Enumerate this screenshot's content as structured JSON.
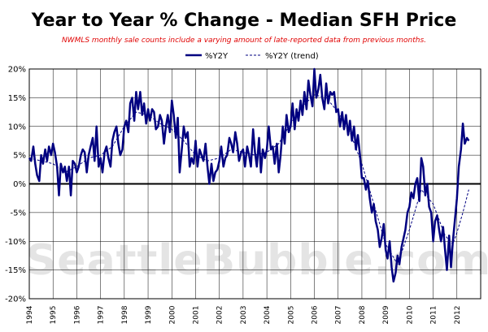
{
  "chart_data": {
    "type": "line",
    "title": "Year to Year % Change - Median SFH Price",
    "subtitle": "NWMLS monthly sale counts include a varying amount of late-reported  data from previous months.",
    "watermark": "SeattleBubble.com",
    "xlabel": "",
    "ylabel": "",
    "xlim": [
      1994,
      2013
    ],
    "ylim": [
      -20,
      20
    ],
    "y_ticks": [
      "20%",
      "15%",
      "10%",
      "5%",
      "0%",
      "-5%",
      "-10%",
      "-15%",
      "-20%"
    ],
    "y_tick_values": [
      20,
      15,
      10,
      5,
      0,
      -5,
      -10,
      -15,
      -20
    ],
    "x_ticks": [
      "1994",
      "1995",
      "1996",
      "1997",
      "1998",
      "1999",
      "2000",
      "2001",
      "2002",
      "2003",
      "2004",
      "2005",
      "2006",
      "2007",
      "2008",
      "2009",
      "2010",
      "2011",
      "2012"
    ],
    "grid": true,
    "legend_position": "top-center",
    "colors": {
      "series": "#000080",
      "trend": "#000080",
      "subtitle": "#e00000",
      "zero_line": "#000000",
      "grid": "#000000"
    },
    "series": [
      {
        "name": "%Y2Y",
        "style": "solid",
        "points": [
          [
            1994.0,
            4.5
          ],
          [
            1994.08,
            4.0
          ],
          [
            1994.17,
            6.5
          ],
          [
            1994.25,
            3.5
          ],
          [
            1994.33,
            1.5
          ],
          [
            1994.42,
            0.5
          ],
          [
            1994.5,
            5.0
          ],
          [
            1994.58,
            3.5
          ],
          [
            1994.67,
            6.0
          ],
          [
            1994.75,
            4.0
          ],
          [
            1994.83,
            6.5
          ],
          [
            1994.92,
            5.0
          ],
          [
            1995.0,
            7.0
          ],
          [
            1995.08,
            5.5
          ],
          [
            1995.17,
            3.0
          ],
          [
            1995.25,
            -2.0
          ],
          [
            1995.33,
            3.5
          ],
          [
            1995.42,
            2.0
          ],
          [
            1995.5,
            3.0
          ],
          [
            1995.58,
            0.5
          ],
          [
            1995.67,
            3.0
          ],
          [
            1995.75,
            -2.0
          ],
          [
            1995.83,
            4.0
          ],
          [
            1995.92,
            3.5
          ],
          [
            1996.0,
            2.0
          ],
          [
            1996.08,
            3.0
          ],
          [
            1996.17,
            5.0
          ],
          [
            1996.25,
            6.0
          ],
          [
            1996.33,
            5.5
          ],
          [
            1996.42,
            2.0
          ],
          [
            1996.5,
            5.0
          ],
          [
            1996.58,
            6.5
          ],
          [
            1996.67,
            8.0
          ],
          [
            1996.75,
            4.0
          ],
          [
            1996.83,
            10.0
          ],
          [
            1996.92,
            3.0
          ],
          [
            1997.0,
            4.5
          ],
          [
            1997.08,
            2.0
          ],
          [
            1997.17,
            5.5
          ],
          [
            1997.25,
            6.5
          ],
          [
            1997.33,
            4.5
          ],
          [
            1997.42,
            3.0
          ],
          [
            1997.5,
            7.5
          ],
          [
            1997.58,
            9.0
          ],
          [
            1997.67,
            10.0
          ],
          [
            1997.75,
            7.0
          ],
          [
            1997.83,
            5.0
          ],
          [
            1997.92,
            6.0
          ],
          [
            1998.0,
            10.0
          ],
          [
            1998.08,
            11.0
          ],
          [
            1998.17,
            9.0
          ],
          [
            1998.25,
            14.0
          ],
          [
            1998.33,
            15.0
          ],
          [
            1998.42,
            11.0
          ],
          [
            1998.5,
            16.0
          ],
          [
            1998.58,
            13.0
          ],
          [
            1998.67,
            16.0
          ],
          [
            1998.75,
            12.0
          ],
          [
            1998.83,
            14.0
          ],
          [
            1998.92,
            10.5
          ],
          [
            1999.0,
            13.0
          ],
          [
            1999.08,
            11.0
          ],
          [
            1999.17,
            13.0
          ],
          [
            1999.25,
            12.5
          ],
          [
            1999.33,
            9.5
          ],
          [
            1999.42,
            10.0
          ],
          [
            1999.5,
            12.0
          ],
          [
            1999.58,
            11.0
          ],
          [
            1999.67,
            7.0
          ],
          [
            1999.75,
            10.0
          ],
          [
            1999.83,
            12.0
          ],
          [
            1999.92,
            9.0
          ],
          [
            2000.0,
            14.5
          ],
          [
            2000.08,
            12.0
          ],
          [
            2000.17,
            8.0
          ],
          [
            2000.25,
            11.5
          ],
          [
            2000.33,
            2.0
          ],
          [
            2000.42,
            6.0
          ],
          [
            2000.5,
            10.0
          ],
          [
            2000.58,
            8.0
          ],
          [
            2000.67,
            9.0
          ],
          [
            2000.75,
            3.0
          ],
          [
            2000.83,
            4.5
          ],
          [
            2000.92,
            3.5
          ],
          [
            2001.0,
            7.5
          ],
          [
            2001.08,
            3.0
          ],
          [
            2001.17,
            6.0
          ],
          [
            2001.25,
            5.0
          ],
          [
            2001.33,
            4.0
          ],
          [
            2001.42,
            7.0
          ],
          [
            2001.5,
            3.0
          ],
          [
            2001.58,
            0.0
          ],
          [
            2001.67,
            3.5
          ],
          [
            2001.75,
            0.5
          ],
          [
            2001.83,
            2.0
          ],
          [
            2001.92,
            2.5
          ],
          [
            2002.0,
            4.0
          ],
          [
            2002.08,
            6.5
          ],
          [
            2002.17,
            3.0
          ],
          [
            2002.25,
            4.5
          ],
          [
            2002.33,
            5.0
          ],
          [
            2002.42,
            8.0
          ],
          [
            2002.5,
            7.0
          ],
          [
            2002.58,
            5.5
          ],
          [
            2002.67,
            9.0
          ],
          [
            2002.75,
            7.0
          ],
          [
            2002.83,
            4.0
          ],
          [
            2002.92,
            5.5
          ],
          [
            2003.0,
            6.0
          ],
          [
            2003.08,
            3.0
          ],
          [
            2003.17,
            6.5
          ],
          [
            2003.25,
            5.0
          ],
          [
            2003.33,
            3.0
          ],
          [
            2003.42,
            9.5
          ],
          [
            2003.5,
            5.5
          ],
          [
            2003.58,
            3.0
          ],
          [
            2003.67,
            8.0
          ],
          [
            2003.75,
            2.0
          ],
          [
            2003.83,
            6.0
          ],
          [
            2003.92,
            4.5
          ],
          [
            2004.0,
            6.0
          ],
          [
            2004.08,
            10.0
          ],
          [
            2004.17,
            6.0
          ],
          [
            2004.25,
            6.5
          ],
          [
            2004.33,
            3.5
          ],
          [
            2004.42,
            7.0
          ],
          [
            2004.5,
            2.0
          ],
          [
            2004.58,
            5.0
          ],
          [
            2004.67,
            10.0
          ],
          [
            2004.75,
            7.0
          ],
          [
            2004.83,
            12.0
          ],
          [
            2004.92,
            9.0
          ],
          [
            2005.0,
            10.0
          ],
          [
            2005.08,
            14.0
          ],
          [
            2005.17,
            9.5
          ],
          [
            2005.25,
            13.0
          ],
          [
            2005.33,
            11.0
          ],
          [
            2005.42,
            14.5
          ],
          [
            2005.5,
            12.0
          ],
          [
            2005.58,
            16.0
          ],
          [
            2005.67,
            13.0
          ],
          [
            2005.75,
            18.0
          ],
          [
            2005.83,
            15.5
          ],
          [
            2005.92,
            13.5
          ],
          [
            2006.0,
            20.0
          ],
          [
            2006.08,
            15.0
          ],
          [
            2006.17,
            16.5
          ],
          [
            2006.25,
            19.0
          ],
          [
            2006.33,
            15.0
          ],
          [
            2006.42,
            13.0
          ],
          [
            2006.5,
            17.5
          ],
          [
            2006.58,
            14.0
          ],
          [
            2006.67,
            16.0
          ],
          [
            2006.75,
            15.5
          ],
          [
            2006.83,
            16.0
          ],
          [
            2006.92,
            12.5
          ],
          [
            2007.0,
            13.0
          ],
          [
            2007.08,
            10.0
          ],
          [
            2007.17,
            12.5
          ],
          [
            2007.25,
            9.5
          ],
          [
            2007.33,
            12.0
          ],
          [
            2007.42,
            8.5
          ],
          [
            2007.5,
            11.0
          ],
          [
            2007.58,
            7.5
          ],
          [
            2007.67,
            10.0
          ],
          [
            2007.75,
            6.0
          ],
          [
            2007.83,
            8.5
          ],
          [
            2007.92,
            5.0
          ],
          [
            2008.0,
            1.0
          ],
          [
            2008.08,
            1.0
          ],
          [
            2008.17,
            -1.0
          ],
          [
            2008.25,
            0.5
          ],
          [
            2008.33,
            -2.5
          ],
          [
            2008.42,
            -5.0
          ],
          [
            2008.5,
            -3.5
          ],
          [
            2008.58,
            -6.5
          ],
          [
            2008.67,
            -8.0
          ],
          [
            2008.75,
            -11.0
          ],
          [
            2008.83,
            -9.5
          ],
          [
            2008.92,
            -7.0
          ],
          [
            2009.0,
            -11.5
          ],
          [
            2009.08,
            -13.0
          ],
          [
            2009.17,
            -10.0
          ],
          [
            2009.25,
            -14.5
          ],
          [
            2009.33,
            -17.0
          ],
          [
            2009.42,
            -15.5
          ],
          [
            2009.5,
            -12.5
          ],
          [
            2009.58,
            -14.0
          ],
          [
            2009.67,
            -11.0
          ],
          [
            2009.75,
            -9.5
          ],
          [
            2009.83,
            -8.0
          ],
          [
            2009.92,
            -5.0
          ],
          [
            2010.0,
            -4.0
          ],
          [
            2010.08,
            -1.5
          ],
          [
            2010.17,
            -2.5
          ],
          [
            2010.25,
            0.0
          ],
          [
            2010.33,
            1.0
          ],
          [
            2010.42,
            -3.0
          ],
          [
            2010.5,
            4.5
          ],
          [
            2010.58,
            3.0
          ],
          [
            2010.67,
            -2.0
          ],
          [
            2010.75,
            0.0
          ],
          [
            2010.83,
            -4.0
          ],
          [
            2010.92,
            -5.0
          ],
          [
            2011.0,
            -10.0
          ],
          [
            2011.08,
            -6.5
          ],
          [
            2011.17,
            -5.5
          ],
          [
            2011.25,
            -8.0
          ],
          [
            2011.33,
            -10.0
          ],
          [
            2011.42,
            -7.5
          ],
          [
            2011.5,
            -11.5
          ],
          [
            2011.58,
            -15.0
          ],
          [
            2011.67,
            -9.0
          ],
          [
            2011.75,
            -14.5
          ],
          [
            2011.83,
            -10.0
          ],
          [
            2011.92,
            -6.0
          ],
          [
            2012.0,
            -2.5
          ],
          [
            2012.08,
            3.0
          ],
          [
            2012.17,
            6.0
          ],
          [
            2012.25,
            10.5
          ],
          [
            2012.33,
            7.0
          ],
          [
            2012.42,
            8.0
          ],
          [
            2012.5,
            7.5
          ]
        ]
      },
      {
        "name": "%Y2Y (trend)",
        "style": "dashed",
        "points": [
          [
            1994.0,
            4.5
          ],
          [
            1994.5,
            4.0
          ],
          [
            1995.0,
            3.5
          ],
          [
            1995.5,
            2.0
          ],
          [
            1996.0,
            3.0
          ],
          [
            1996.5,
            4.5
          ],
          [
            1997.0,
            5.0
          ],
          [
            1997.5,
            6.5
          ],
          [
            1998.0,
            10.0
          ],
          [
            1998.5,
            12.5
          ],
          [
            1999.0,
            12.0
          ],
          [
            1999.5,
            10.5
          ],
          [
            2000.0,
            9.5
          ],
          [
            2000.5,
            7.5
          ],
          [
            2001.0,
            5.0
          ],
          [
            2001.5,
            4.0
          ],
          [
            2002.0,
            4.5
          ],
          [
            2002.5,
            6.0
          ],
          [
            2003.0,
            5.5
          ],
          [
            2003.5,
            5.0
          ],
          [
            2004.0,
            5.5
          ],
          [
            2004.5,
            7.0
          ],
          [
            2005.0,
            10.5
          ],
          [
            2005.5,
            13.5
          ],
          [
            2006.0,
            15.5
          ],
          [
            2006.5,
            15.0
          ],
          [
            2007.0,
            12.5
          ],
          [
            2007.5,
            9.0
          ],
          [
            2008.0,
            3.5
          ],
          [
            2008.5,
            -3.5
          ],
          [
            2009.0,
            -10.5
          ],
          [
            2009.5,
            -14.0
          ],
          [
            2010.0,
            -8.0
          ],
          [
            2010.5,
            -1.0
          ],
          [
            2011.0,
            -3.5
          ],
          [
            2011.5,
            -9.0
          ],
          [
            2011.83,
            -10.5
          ],
          [
            2012.0,
            -8.5
          ],
          [
            2012.25,
            -5.0
          ],
          [
            2012.5,
            -1.0
          ]
        ]
      }
    ]
  }
}
